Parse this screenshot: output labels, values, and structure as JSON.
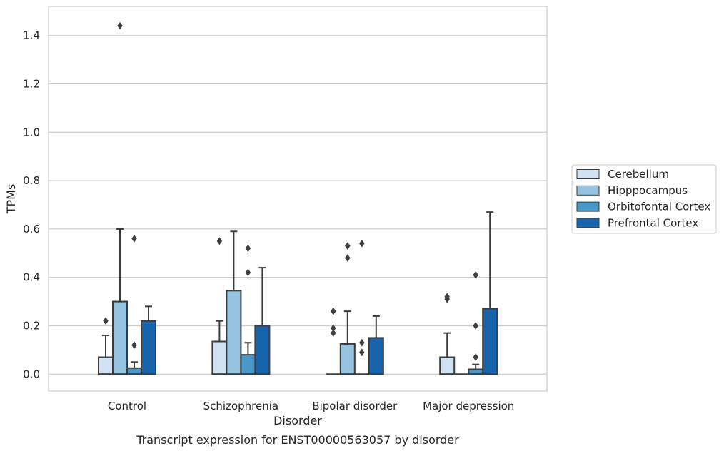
{
  "chart_data": {
    "type": "box",
    "xlabel": "Disorder",
    "ylabel": "TPMs",
    "caption": "Transcript expression for ENST00000563057 by disorder",
    "ylim": [
      -0.07,
      1.52
    ],
    "yticks": [
      0.0,
      0.2,
      0.4,
      0.6,
      0.8,
      1.0,
      1.2,
      1.4
    ],
    "ytick_labels": [
      "0.0",
      "0.2",
      "0.4",
      "0.6",
      "0.8",
      "1.0",
      "1.2",
      "1.4"
    ],
    "grid": "horizontal",
    "legend_position": "right",
    "categories": [
      "Control",
      "Schizophrenia",
      "Bipolar disorder",
      "Major depression"
    ],
    "series": [
      {
        "name": "Cerebellum",
        "color": "#d0e1f2",
        "boxes": [
          {
            "q1": 0.0,
            "median": 0.0,
            "q3": 0.07,
            "whisker_low": 0.0,
            "whisker_high": 0.16,
            "outliers": [
              0.22
            ]
          },
          {
            "q1": 0.0,
            "median": 0.0,
            "q3": 0.135,
            "whisker_low": 0.0,
            "whisker_high": 0.22,
            "outliers": [
              0.55
            ]
          },
          {
            "q1": 0.0,
            "median": 0.0,
            "q3": 0.0,
            "whisker_low": 0.0,
            "whisker_high": 0.0,
            "outliers": [
              0.26,
              0.19,
              0.17
            ]
          },
          {
            "q1": 0.0,
            "median": 0.0,
            "q3": 0.07,
            "whisker_low": 0.0,
            "whisker_high": 0.17,
            "outliers": [
              0.32,
              0.31
            ]
          }
        ]
      },
      {
        "name": "Hipppocampus",
        "color": "#94c4df",
        "boxes": [
          {
            "q1": 0.0,
            "median": 0.0,
            "q3": 0.3,
            "whisker_low": 0.0,
            "whisker_high": 0.6,
            "outliers": [
              1.44
            ]
          },
          {
            "q1": 0.0,
            "median": 0.0,
            "q3": 0.345,
            "whisker_low": 0.0,
            "whisker_high": 0.59,
            "outliers": []
          },
          {
            "q1": 0.0,
            "median": 0.0,
            "q3": 0.125,
            "whisker_low": 0.0,
            "whisker_high": 0.26,
            "outliers": [
              0.53,
              0.48
            ]
          },
          {
            "q1": 0.0,
            "median": 0.0,
            "q3": 0.0,
            "whisker_low": 0.0,
            "whisker_high": 0.0,
            "outliers": []
          }
        ]
      },
      {
        "name": "Orbitofontal Cortex",
        "color": "#4a98c9",
        "boxes": [
          {
            "q1": 0.0,
            "median": 0.0,
            "q3": 0.025,
            "whisker_low": 0.0,
            "whisker_high": 0.05,
            "outliers": [
              0.56,
              0.12
            ]
          },
          {
            "q1": 0.0,
            "median": 0.0,
            "q3": 0.08,
            "whisker_low": 0.0,
            "whisker_high": 0.13,
            "outliers": [
              0.52,
              0.42
            ]
          },
          {
            "q1": 0.0,
            "median": 0.0,
            "q3": 0.0,
            "whisker_low": 0.0,
            "whisker_high": 0.0,
            "outliers": [
              0.54,
              0.13,
              0.09
            ]
          },
          {
            "q1": 0.0,
            "median": 0.0,
            "q3": 0.02,
            "whisker_low": 0.0,
            "whisker_high": 0.04,
            "outliers": [
              0.41,
              0.2,
              0.07
            ]
          }
        ]
      },
      {
        "name": "Prefrontal Cortex",
        "color": "#1764ab",
        "boxes": [
          {
            "q1": 0.0,
            "median": 0.0,
            "q3": 0.22,
            "whisker_low": 0.0,
            "whisker_high": 0.28,
            "outliers": []
          },
          {
            "q1": 0.0,
            "median": 0.0,
            "q3": 0.2,
            "whisker_low": 0.0,
            "whisker_high": 0.44,
            "outliers": []
          },
          {
            "q1": 0.0,
            "median": 0.0,
            "q3": 0.15,
            "whisker_low": 0.0,
            "whisker_high": 0.24,
            "outliers": []
          },
          {
            "q1": 0.0,
            "median": 0.0,
            "q3": 0.27,
            "whisker_low": 0.0,
            "whisker_high": 0.67,
            "outliers": []
          }
        ]
      }
    ]
  }
}
